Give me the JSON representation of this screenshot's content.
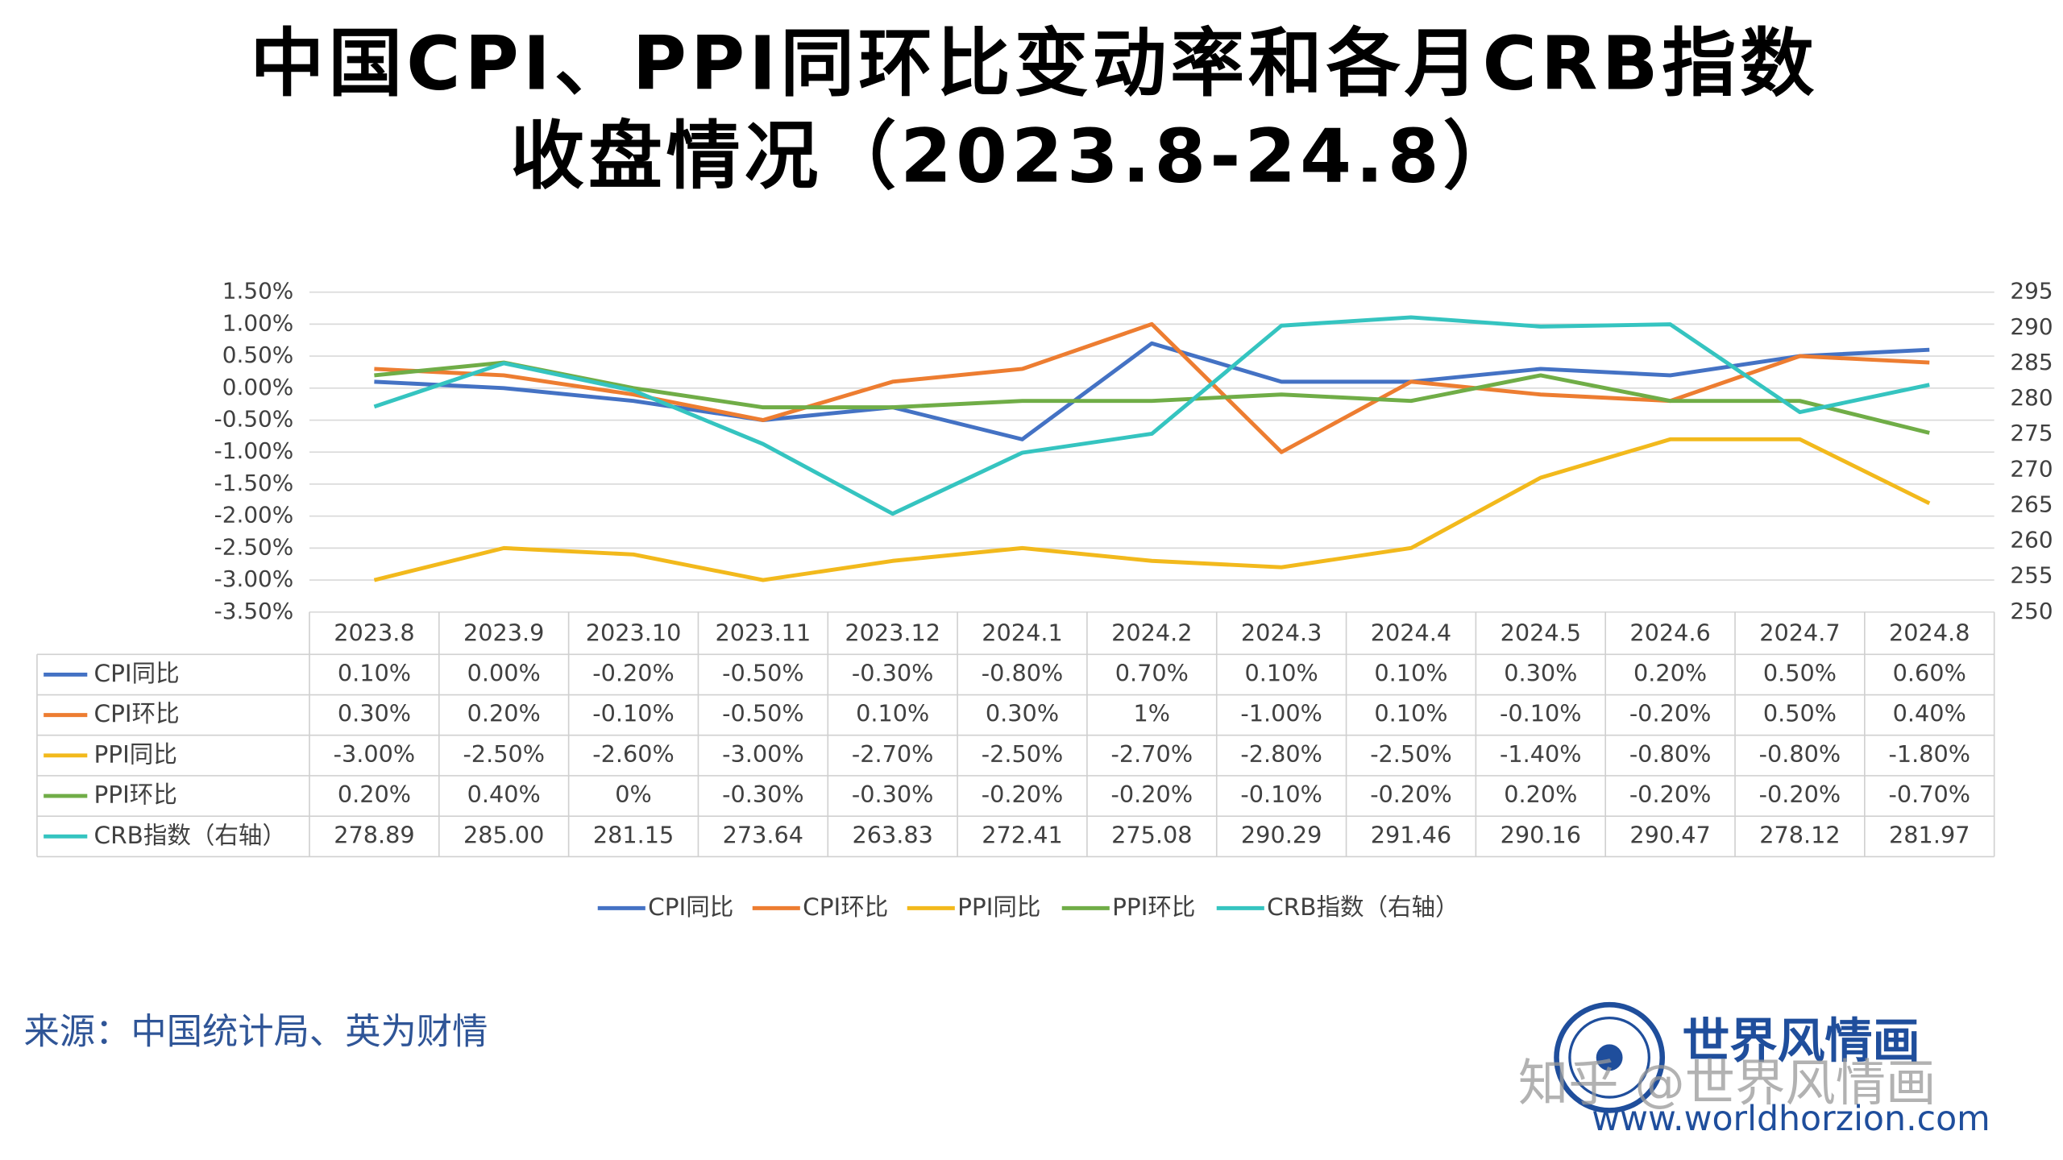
{
  "chart_data": {
    "type": "line",
    "title": [
      "中国CPI、PPI同环比变动率和各月CRB指数",
      "收盘情况（2023.8-24.8）"
    ],
    "categories": [
      "2023.8",
      "2023.9",
      "2023.10",
      "2023.11",
      "2023.12",
      "2024.1",
      "2024.2",
      "2024.3",
      "2024.4",
      "2024.5",
      "2024.6",
      "2024.7",
      "2024.8"
    ],
    "series": [
      {
        "name": "CPI同比",
        "color": "#4472c4",
        "values": [
          0.1,
          0,
          -0.2,
          -0.5,
          -0.3,
          -0.8,
          0.7,
          0.1,
          0.1,
          0.3,
          0.2,
          0.5,
          0.6
        ],
        "value_labels": [
          "0.10%",
          "0.00%",
          "-0.20%",
          "-0.50%",
          "-0.30%",
          "-0.80%",
          "0.70%",
          "0.10%",
          "0.10%",
          "0.30%",
          "0.20%",
          "0.50%",
          "0.60%"
        ]
      },
      {
        "name": "CPI环比",
        "color": "#ed7d31",
        "values": [
          0.3,
          0.2,
          -0.1,
          -0.5,
          0.1,
          0.3,
          1,
          -1,
          0.1,
          -0.1,
          -0.2,
          0.5,
          0.4
        ],
        "value_labels": [
          "0.30%",
          "0.20%",
          "-0.10%",
          "-0.50%",
          "0.10%",
          "0.30%",
          "1%",
          "-1.00%",
          "0.10%",
          "-0.10%",
          "-0.20%",
          "0.50%",
          "0.40%"
        ]
      },
      {
        "name": "PPI同比",
        "color": "#f2b91c",
        "values": [
          -3,
          -2.5,
          -2.6,
          -3,
          -2.7,
          -2.5,
          -2.7,
          -2.8,
          -2.5,
          -1.4,
          -0.8,
          -0.8,
          -1.8
        ],
        "value_labels": [
          "-3.00%",
          "-2.50%",
          "-2.60%",
          "-3.00%",
          "-2.70%",
          "-2.50%",
          "-2.70%",
          "-2.80%",
          "-2.50%",
          "-1.40%",
          "-0.80%",
          "-0.80%",
          "-1.80%"
        ]
      },
      {
        "name": "PPI环比",
        "color": "#70ad47",
        "values": [
          0.2,
          0.4,
          0,
          -0.3,
          -0.3,
          -0.2,
          -0.2,
          -0.1,
          -0.2,
          0.2,
          -0.2,
          -0.2,
          -0.7
        ],
        "value_labels": [
          "0.20%",
          "0.40%",
          "0%",
          "-0.30%",
          "-0.30%",
          "-0.20%",
          "-0.20%",
          "-0.10%",
          "-0.20%",
          "0.20%",
          "-0.20%",
          "-0.20%",
          "-0.70%"
        ]
      },
      {
        "name": "CRB指数（右轴）",
        "color": "#35c4c0",
        "axis": "y2",
        "values": [
          278.89,
          285,
          281.15,
          273.64,
          263.83,
          272.41,
          275.08,
          290.29,
          291.46,
          290.16,
          290.47,
          278.12,
          281.97
        ],
        "value_labels": [
          "278.89",
          "285.00",
          "281.15",
          "273.64",
          "263.83",
          "272.41",
          "275.08",
          "290.29",
          "291.46",
          "290.16",
          "290.47",
          "278.12",
          "281.97"
        ]
      }
    ],
    "ylim": [
      -3.5,
      1.5
    ],
    "yticks": [
      {
        "value": 1.5,
        "label": "1.50%"
      },
      {
        "value": 1,
        "label": "1.00%"
      },
      {
        "value": 0.5,
        "label": "0.50%"
      },
      {
        "value": 0,
        "label": "0.00%"
      },
      {
        "value": -0.5,
        "label": "-0.50%"
      },
      {
        "value": -1,
        "label": "-1.00%"
      },
      {
        "value": -1.5,
        "label": "-1.50%"
      },
      {
        "value": -2,
        "label": "-2.00%"
      },
      {
        "value": -2.5,
        "label": "-2.50%"
      },
      {
        "value": -3,
        "label": "-3.00%"
      },
      {
        "value": -3.5,
        "label": "-3.50%"
      }
    ],
    "y2lim": [
      250,
      295
    ],
    "y2ticks": [
      250,
      255,
      260,
      265,
      270,
      275,
      280,
      285,
      290,
      295
    ],
    "grid": true,
    "legend": "bottom"
  },
  "source": "来源：中国统计局、英为财情",
  "logo_text": "世界风情画",
  "logo_url": "www.worldhorzion.com",
  "watermark": "知乎 @世界风情画"
}
